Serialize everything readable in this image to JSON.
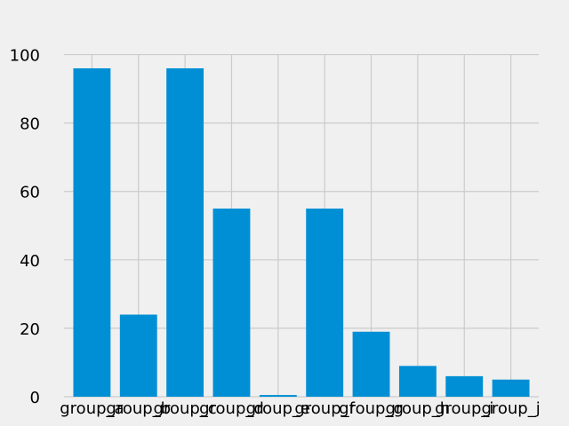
{
  "chart_data": {
    "type": "bar",
    "title": "",
    "xlabel": "",
    "ylabel": "",
    "categories": [
      "group_a",
      "group_b",
      "group_c",
      "group_d",
      "group_e",
      "group_f",
      "group_g",
      "group_h",
      "group_i",
      "group_j"
    ],
    "values": [
      96,
      24,
      96,
      55,
      0.5,
      55,
      19,
      9,
      6,
      5
    ],
    "ylim": [
      0,
      110
    ],
    "yticks": [
      "0",
      "20",
      "40",
      "60",
      "80",
      "100"
    ],
    "grid": true,
    "legend": "none",
    "colors": {
      "bar": "#008fd5",
      "background": "#f0f0f0",
      "grid": "#cbcbcb"
    }
  }
}
